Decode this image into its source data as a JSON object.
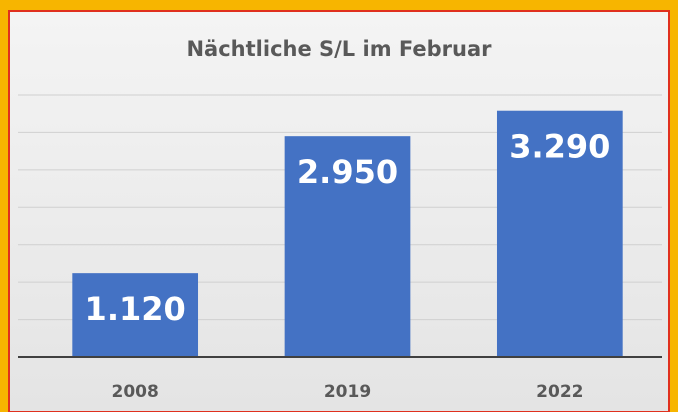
{
  "chart_data": {
    "type": "bar",
    "title": "Nächtliche S/L im Februar",
    "categories": [
      "2008",
      "2019",
      "2022"
    ],
    "values": [
      1120,
      2950,
      3290
    ],
    "value_labels": [
      "1.120",
      "2.950",
      "3.290"
    ],
    "color": "#4472c4",
    "ylim": [
      0,
      3500
    ],
    "yticks": [
      0,
      500,
      1000,
      1500,
      2000,
      2500,
      3000,
      3500
    ],
    "grid": true
  }
}
